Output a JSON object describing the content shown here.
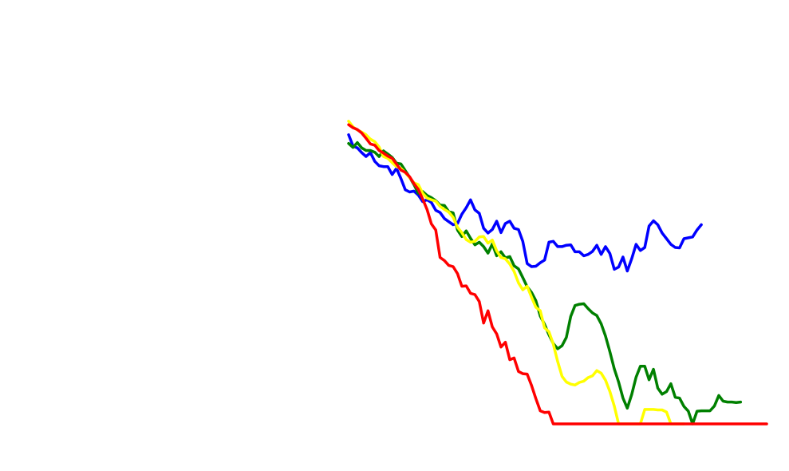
{
  "chart_data": {
    "type": "line",
    "title": "",
    "xlabel": "",
    "ylabel": "",
    "grid": false,
    "legend": "none",
    "xlim": [
      0,
      96
    ],
    "ylim": [
      0,
      70
    ],
    "series": [
      {
        "color": "#0000ff",
        "values": [
          66.2,
          63.6,
          63.2,
          62.1,
          61.2,
          62.1,
          60.1,
          59.1,
          58.9,
          58.9,
          57.1,
          58.5,
          56.2,
          53.6,
          53.1,
          53.3,
          52.4,
          50.9,
          51.3,
          50.7,
          48.9,
          48.4,
          47.0,
          46.3,
          45.6,
          45.9,
          48.0,
          49.5,
          51.3,
          49.0,
          48.2,
          44.8,
          43.7,
          44.5,
          46.4,
          43.8,
          45.9,
          46.4,
          44.8,
          44.5,
          41.8,
          36.7,
          36.0,
          36.1,
          36.9,
          37.5,
          41.6,
          41.8,
          40.6,
          40.6,
          40.9,
          41.0,
          39.4,
          39.4,
          38.5,
          38.8,
          39.5,
          40.9,
          38.8,
          40.6,
          39.0,
          35.4,
          35.9,
          38.2,
          35.0,
          37.8,
          41.1,
          39.7,
          40.4,
          45.3,
          46.5,
          45.6,
          43.7,
          42.4,
          41.1,
          40.4,
          40.3,
          42.4,
          42.6,
          42.8,
          44.4,
          45.6
        ],
        "x": [
          0,
          1,
          2,
          3,
          4,
          5,
          6,
          7,
          8,
          9,
          10,
          11,
          12,
          13,
          14,
          15,
          16,
          17,
          18,
          19,
          20,
          21,
          22,
          23,
          24,
          25,
          26,
          27,
          28,
          29,
          30,
          31,
          32,
          33,
          34,
          35,
          36,
          37,
          38,
          39,
          40,
          41,
          42,
          43,
          44,
          45,
          46,
          47,
          48,
          49,
          50,
          51,
          52,
          53,
          54,
          55,
          56,
          57,
          58,
          59,
          60,
          61,
          62,
          63,
          64,
          65,
          66,
          67,
          68,
          69,
          70,
          71,
          72,
          73,
          74,
          75,
          76,
          77,
          78,
          79,
          80,
          81
        ]
      },
      {
        "color": "#008000",
        "values": [
          64.2,
          63.3,
          64.4,
          63.2,
          62.6,
          62.6,
          62.2,
          61.2,
          62.5,
          61.8,
          61.0,
          59.7,
          59.5,
          58.0,
          56.5,
          54.8,
          52.8,
          53.2,
          52.3,
          51.8,
          51.1,
          50.1,
          50.0,
          48.6,
          48.3,
          44.4,
          42.9,
          44.2,
          42.5,
          41.0,
          41.6,
          40.6,
          39.1,
          41.2,
          38.5,
          39.4,
          38.0,
          38.3,
          36.2,
          35.5,
          33.5,
          31.4,
          30.1,
          28.2,
          24.7,
          22.8,
          20.4,
          18.4,
          17.2,
          17.9,
          19.8,
          24.6,
          27.1,
          27.4,
          27.5,
          26.4,
          25.4,
          24.8,
          22.9,
          20.1,
          16.5,
          12.6,
          9.6,
          5.9,
          3.6,
          6.7,
          10.7,
          13.2,
          13.2,
          10.1,
          12.5,
          8.2,
          6.8,
          7.4,
          9.2,
          6.1,
          5.9,
          4.0,
          2.9,
          0.0,
          2.9,
          3.0,
          3.0,
          3.0,
          4.1,
          6.5,
          5.2,
          5.0,
          5.0,
          4.9,
          5.0
        ],
        "x": [
          0,
          1,
          2,
          3,
          4,
          5,
          6,
          7,
          8,
          9,
          10,
          11,
          12,
          13,
          14,
          15,
          16,
          17,
          18,
          19,
          20,
          21,
          22,
          23,
          24,
          25,
          26,
          27,
          28,
          29,
          30,
          31,
          32,
          33,
          34,
          35,
          36,
          37,
          38,
          39,
          40,
          41,
          42,
          43,
          44,
          45,
          46,
          47,
          48,
          49,
          50,
          51,
          52,
          53,
          54,
          55,
          56,
          57,
          58,
          59,
          60,
          61,
          62,
          63,
          64,
          65,
          66,
          67,
          68,
          69,
          70,
          71,
          72,
          73,
          74,
          75,
          76,
          77,
          78,
          79,
          80,
          81,
          82,
          83,
          84,
          85,
          86,
          87,
          88,
          89,
          90
        ]
      },
      {
        "color": "#ffff00",
        "values": [
          69.3,
          68.0,
          67.3,
          66.8,
          66.2,
          65.2,
          64.6,
          63.4,
          61.2,
          60.8,
          59.8,
          58.9,
          58.5,
          57.5,
          56.4,
          55.2,
          54.8,
          52.8,
          51.7,
          51.3,
          51.0,
          49.8,
          49.1,
          48.5,
          47.3,
          45.0,
          43.8,
          42.2,
          41.6,
          41.8,
          42.8,
          42.9,
          41.4,
          42.1,
          39.6,
          38.1,
          37.8,
          36.6,
          34.9,
          32.3,
          30.7,
          31.5,
          29.0,
          26.7,
          25.9,
          22.0,
          21.1,
          18.3,
          14.3,
          10.9,
          9.6,
          9.1,
          8.9,
          9.5,
          9.8,
          10.6,
          11.0,
          12.2,
          11.6,
          10.0,
          7.4,
          4.1,
          0.0,
          0.0,
          0.0,
          0.0,
          0.0,
          0.0,
          3.3,
          3.3,
          3.3,
          3.2,
          3.2,
          2.7,
          0.0,
          0.0,
          0.0,
          0.0
        ],
        "x": [
          0,
          1,
          2,
          3,
          4,
          5,
          6,
          7,
          8,
          9,
          10,
          11,
          12,
          13,
          14,
          15,
          16,
          17,
          18,
          19,
          20,
          21,
          22,
          23,
          24,
          25,
          26,
          27,
          28,
          29,
          30,
          31,
          32,
          33,
          34,
          35,
          36,
          37,
          38,
          39,
          40,
          41,
          42,
          43,
          44,
          45,
          46,
          47,
          48,
          49,
          50,
          51,
          52,
          53,
          54,
          55,
          56,
          57,
          58,
          59,
          60,
          61,
          62,
          63,
          64,
          65,
          66,
          67,
          68,
          69,
          70,
          71,
          72,
          73,
          74,
          75,
          76,
          77
        ]
      },
      {
        "color": "#ff0000",
        "values": [
          68.5,
          67.8,
          67.4,
          66.6,
          65.4,
          64.1,
          63.8,
          62.6,
          62.0,
          61.3,
          60.8,
          59.5,
          58.1,
          57.6,
          56.6,
          55.0,
          53.7,
          51.5,
          49.1,
          45.8,
          44.4,
          38.1,
          37.4,
          36.3,
          36.0,
          34.4,
          31.5,
          31.6,
          29.9,
          29.6,
          28.0,
          23.1,
          25.9,
          22.2,
          20.6,
          17.6,
          18.7,
          14.7,
          15.1,
          12.0,
          11.5,
          11.4,
          8.8,
          5.8,
          3.0,
          2.6,
          2.7,
          0.0,
          0.0,
          0.0,
          0.0,
          0.0,
          0.0,
          0.0,
          0.0,
          0.0,
          0.0,
          0.0,
          0.0,
          0.0,
          0.0,
          0.0,
          0.0,
          0.0,
          0.0,
          0.0,
          0.0,
          0.0,
          0.0,
          0.0,
          0.0,
          0.0,
          0.0,
          0.0,
          0.0,
          0.0,
          0.0,
          0.0,
          0.0,
          0.0,
          0.0,
          0.0,
          0.0,
          0.0,
          0.0,
          0.0,
          0.0,
          0.0,
          0.0,
          0.0,
          0.0,
          0.0,
          0.0,
          0.0,
          0.0,
          0.0,
          0.0
        ],
        "x": [
          0,
          1,
          2,
          3,
          4,
          5,
          6,
          7,
          8,
          9,
          10,
          11,
          12,
          13,
          14,
          15,
          16,
          17,
          18,
          19,
          20,
          21,
          22,
          23,
          24,
          25,
          26,
          27,
          28,
          29,
          30,
          31,
          32,
          33,
          34,
          35,
          36,
          37,
          38,
          39,
          40,
          41,
          42,
          43,
          44,
          45,
          46,
          47,
          48,
          49,
          50,
          51,
          52,
          53,
          54,
          55,
          56,
          57,
          58,
          59,
          60,
          61,
          62,
          63,
          64,
          65,
          66,
          67,
          68,
          69,
          70,
          71,
          72,
          73,
          74,
          75,
          76,
          77,
          78,
          79,
          80,
          81,
          82,
          83,
          84,
          85,
          86,
          87,
          88,
          89,
          90,
          91,
          92,
          93,
          94,
          95,
          96
        ]
      }
    ]
  }
}
